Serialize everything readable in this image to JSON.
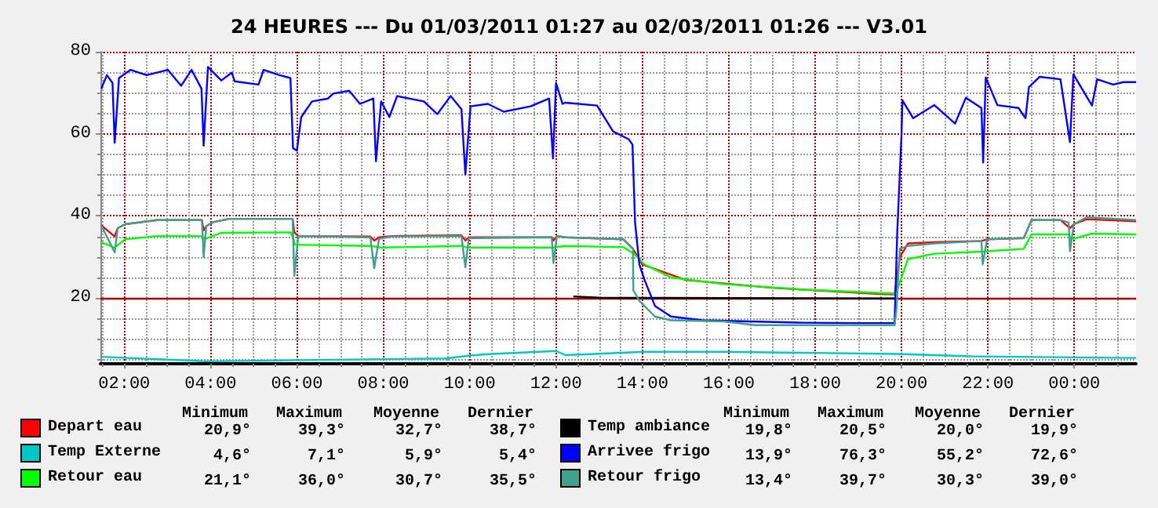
{
  "chart_data": {
    "type": "line",
    "title": "24 HEURES --- Du 01/03/2011 01:27 au 02/03/2011 01:26 --- V3.01",
    "xlim": [
      1.45,
      25.43
    ],
    "xticks": [
      {
        "value": 1.5,
        "label": null
      },
      {
        "value": 2,
        "label": "02:00"
      },
      {
        "value": 2.5,
        "label": null
      },
      {
        "value": 3,
        "label": null
      },
      {
        "value": 3.5,
        "label": null
      },
      {
        "value": 4,
        "label": "04:00"
      },
      {
        "value": 4.5,
        "label": null
      },
      {
        "value": 5,
        "label": null
      },
      {
        "value": 5.5,
        "label": null
      },
      {
        "value": 6,
        "label": "06:00"
      },
      {
        "value": 6.5,
        "label": null
      },
      {
        "value": 7,
        "label": null
      },
      {
        "value": 7.5,
        "label": null
      },
      {
        "value": 8,
        "label": "08:00"
      },
      {
        "value": 8.5,
        "label": null
      },
      {
        "value": 9,
        "label": null
      },
      {
        "value": 9.5,
        "label": null
      },
      {
        "value": 10,
        "label": "10:00"
      },
      {
        "value": 10.5,
        "label": null
      },
      {
        "value": 11,
        "label": null
      },
      {
        "value": 11.5,
        "label": null
      },
      {
        "value": 12,
        "label": "12:00"
      },
      {
        "value": 12.5,
        "label": null
      },
      {
        "value": 13,
        "label": null
      },
      {
        "value": 13.5,
        "label": null
      },
      {
        "value": 14,
        "label": "14:00"
      },
      {
        "value": 14.5,
        "label": null
      },
      {
        "value": 15,
        "label": null
      },
      {
        "value": 15.5,
        "label": null
      },
      {
        "value": 16,
        "label": "16:00"
      },
      {
        "value": 16.5,
        "label": null
      },
      {
        "value": 17,
        "label": null
      },
      {
        "value": 17.5,
        "label": null
      },
      {
        "value": 18,
        "label": "18:00"
      },
      {
        "value": 18.5,
        "label": null
      },
      {
        "value": 19,
        "label": null
      },
      {
        "value": 19.5,
        "label": null
      },
      {
        "value": 20,
        "label": "20:00"
      },
      {
        "value": 20.5,
        "label": null
      },
      {
        "value": 21,
        "label": null
      },
      {
        "value": 21.5,
        "label": null
      },
      {
        "value": 22,
        "label": "22:00"
      },
      {
        "value": 22.5,
        "label": null
      },
      {
        "value": 23,
        "label": null
      },
      {
        "value": 23.5,
        "label": null
      },
      {
        "value": 24,
        "label": "00:00"
      },
      {
        "value": 24.5,
        "label": null
      },
      {
        "value": 25,
        "label": null
      }
    ],
    "ylim": [
      4,
      80
    ],
    "yticks": [
      {
        "value": 5,
        "label": null
      },
      {
        "value": 10,
        "label": null
      },
      {
        "value": 15,
        "label": null
      },
      20,
      {
        "value": 25,
        "label": null
      },
      {
        "value": 30,
        "label": null
      },
      {
        "value": 35,
        "label": null
      },
      40,
      {
        "value": 45,
        "label": null
      },
      {
        "value": 50,
        "label": null
      },
      {
        "value": 55,
        "label": null
      },
      60,
      {
        "value": 65,
        "label": null
      },
      {
        "value": 70,
        "label": null
      },
      {
        "value": 75,
        "label": null
      },
      80
    ],
    "grid": true,
    "legend": "bottom",
    "marker": "none",
    "line_style": "solid",
    "ref_lines": [
      {
        "axis": "y",
        "value": 20,
        "color": "#b00000"
      }
    ],
    "annotations": [
      "Minimum",
      "Maximum",
      "Moyenne",
      "Dernier",
      "Minimum",
      "Maximum",
      "Moyenne",
      "Dernier",
      "20,9°",
      "39,3°",
      "32,7°",
      "38,7°",
      "4,6°",
      "7,1°",
      "5,9°",
      "5,4°",
      "21,1°",
      "36,0°",
      "30,7°",
      "35,5°",
      "19,8°",
      "20,5°",
      "20,0°",
      "19,9°",
      "13,9°",
      "76,3°",
      "55,2°",
      "72,6°",
      "13,4°",
      "39,7°",
      "30,3°",
      "39,0°"
    ],
    "series": [
      {
        "name": "Depart eau",
        "color": "#ff0000",
        "x": [
          1.47,
          1.78,
          1.85,
          2.02,
          2.76,
          3.8,
          3.84,
          3.9,
          4.06,
          4.43,
          5.9,
          5.94,
          6.03,
          7.7,
          7.79,
          7.9,
          8.2,
          9.81,
          9.9,
          9.98,
          11.9,
          11.94,
          12.02,
          12.22,
          13.56,
          13.78,
          14.0,
          15.0,
          17.0,
          19.5,
          19.84,
          19.96,
          20.15,
          20.76,
          21.85,
          21.98,
          22.83,
          23.01,
          23.68,
          23.9,
          23.99,
          24.29,
          25.43
        ],
        "values": [
          37.7,
          35,
          37,
          38,
          39,
          39,
          36.5,
          37.5,
          38.5,
          39.3,
          39.3,
          36,
          35.1,
          35,
          34,
          34.8,
          35.1,
          35.3,
          34,
          34.8,
          34.8,
          34,
          35.1,
          34.8,
          34.3,
          32,
          28.2,
          24.4,
          22.5,
          21,
          20.9,
          30,
          33.3,
          33.6,
          33.9,
          34.3,
          34.6,
          39,
          39,
          37,
          38,
          39.2,
          38.7
        ]
      },
      {
        "name": "Temp Externe",
        "color": "#00c8c8",
        "x": [
          1.47,
          3.9,
          9.45,
          10.0,
          10.5,
          12.0,
          12.22,
          14.05,
          15.88,
          19.9,
          21.6,
          25.43
        ],
        "values": [
          5.7,
          4.6,
          5.3,
          6.0,
          6.4,
          7.1,
          6.1,
          6.9,
          6.9,
          6.4,
          5.8,
          5.4
        ]
      },
      {
        "name": "Retour eau",
        "color": "#00ff00",
        "x": [
          1.47,
          1.78,
          2.02,
          2.76,
          3.8,
          3.84,
          4.25,
          5.86,
          5.96,
          7.7,
          7.95,
          9.81,
          9.95,
          11.9,
          12.22,
          13.56,
          13.8,
          14.05,
          14.66,
          15.88,
          17.71,
          19.84,
          19.9,
          20.15,
          20.76,
          21.85,
          22.83,
          23.01,
          23.87,
          23.93,
          24.41,
          25.43
        ],
        "values": [
          33.6,
          32.3,
          34.3,
          35.1,
          35.1,
          34.3,
          35.9,
          36,
          33,
          32.7,
          32.3,
          32.7,
          32.3,
          32.3,
          32.7,
          32.4,
          30.8,
          28.2,
          25,
          23.4,
          22.1,
          21.1,
          22,
          29.5,
          30.8,
          31.3,
          32,
          35.5,
          35.5,
          34.3,
          35.7,
          35.5
        ]
      },
      {
        "name": "Temp ambiance",
        "color": "#000000",
        "x": [
          12.4,
          13.0,
          16.0,
          19.9
        ],
        "values": [
          20.4,
          20.1,
          20.0,
          19.9
        ]
      },
      {
        "name": "Arrivee frigo",
        "color": "#0000ff",
        "x": [
          1.47,
          1.6,
          1.73,
          1.78,
          1.88,
          2.15,
          2.52,
          3.01,
          3.32,
          3.56,
          3.79,
          3.84,
          3.94,
          4.25,
          4.49,
          4.56,
          5.11,
          5.23,
          5.6,
          5.85,
          5.91,
          6.0,
          6.1,
          6.35,
          6.72,
          6.84,
          7.21,
          7.46,
          7.77,
          7.83,
          7.95,
          8.14,
          8.32,
          8.94,
          9.25,
          9.56,
          9.81,
          9.9,
          10.02,
          10.42,
          10.79,
          11.41,
          11.84,
          11.93,
          12.0,
          12.15,
          12.22,
          12.95,
          13.32,
          13.68,
          13.77,
          13.83,
          13.93,
          14.05,
          14.29,
          14.66,
          15.39,
          16.49,
          17.71,
          18.93,
          19.84,
          19.9,
          20.0,
          20.02,
          20.27,
          20.76,
          21.24,
          21.49,
          21.85,
          21.89,
          21.95,
          22.22,
          22.71,
          22.87,
          22.95,
          23.2,
          23.68,
          23.9,
          23.98,
          24.41,
          24.53,
          24.9,
          25.14,
          25.43
        ],
        "values": [
          71,
          74.3,
          72.4,
          57.8,
          73.6,
          75.6,
          74.3,
          75.6,
          71.7,
          75.6,
          71,
          57.1,
          76.3,
          73,
          74.9,
          72.8,
          72,
          75.6,
          74.3,
          73.6,
          56.5,
          55.9,
          64.1,
          67.9,
          68.6,
          69.8,
          70.5,
          67.3,
          68.6,
          53.3,
          67.9,
          64.1,
          69.2,
          67.9,
          64.8,
          69.2,
          66,
          50.1,
          66.7,
          67.3,
          65.4,
          66.7,
          68.6,
          54,
          72.4,
          67.3,
          67.6,
          66.9,
          60.6,
          58.7,
          57.4,
          38.4,
          28.2,
          24.4,
          18.1,
          15.5,
          14.6,
          14.3,
          14.0,
          13.9,
          13.9,
          35.8,
          59.9,
          68.2,
          63.8,
          67,
          62.5,
          68.8,
          66.3,
          53,
          73.7,
          67,
          66.3,
          63.8,
          71.4,
          73.9,
          73.3,
          58,
          74.5,
          66.9,
          73.3,
          72,
          72.6,
          72.6
        ]
      },
      {
        "name": "Retour frigo",
        "color": "#40a090",
        "x": [
          1.47,
          1.78,
          1.85,
          2.02,
          2.76,
          3.8,
          3.84,
          3.9,
          4.06,
          4.43,
          5.9,
          5.94,
          6.03,
          7.7,
          7.79,
          7.9,
          8.2,
          9.81,
          9.9,
          9.98,
          11.9,
          11.94,
          12.02,
          12.22,
          13.56,
          13.78,
          13.79,
          13.93,
          14.29,
          14.66,
          15.88,
          16.61,
          19.84,
          19.88,
          19.96,
          20.15,
          20.76,
          21.85,
          21.88,
          21.98,
          22.83,
          23.01,
          23.68,
          23.87,
          23.9,
          23.99,
          24.29,
          25.43
        ],
        "values": [
          37.7,
          31.1,
          37,
          38,
          39,
          39,
          30,
          37.5,
          38.5,
          39.3,
          39.3,
          25.4,
          35.1,
          34.8,
          27.3,
          34.4,
          35,
          35.1,
          27.5,
          34.6,
          34.8,
          28.5,
          35.1,
          34.8,
          34.3,
          32,
          21.9,
          19.3,
          15.5,
          14.6,
          14.3,
          13.4,
          13.4,
          16.8,
          32,
          32.7,
          33.3,
          33.9,
          28.2,
          34.3,
          34.6,
          39,
          39,
          38.4,
          31.4,
          38,
          39.7,
          39.0
        ]
      }
    ]
  }
}
